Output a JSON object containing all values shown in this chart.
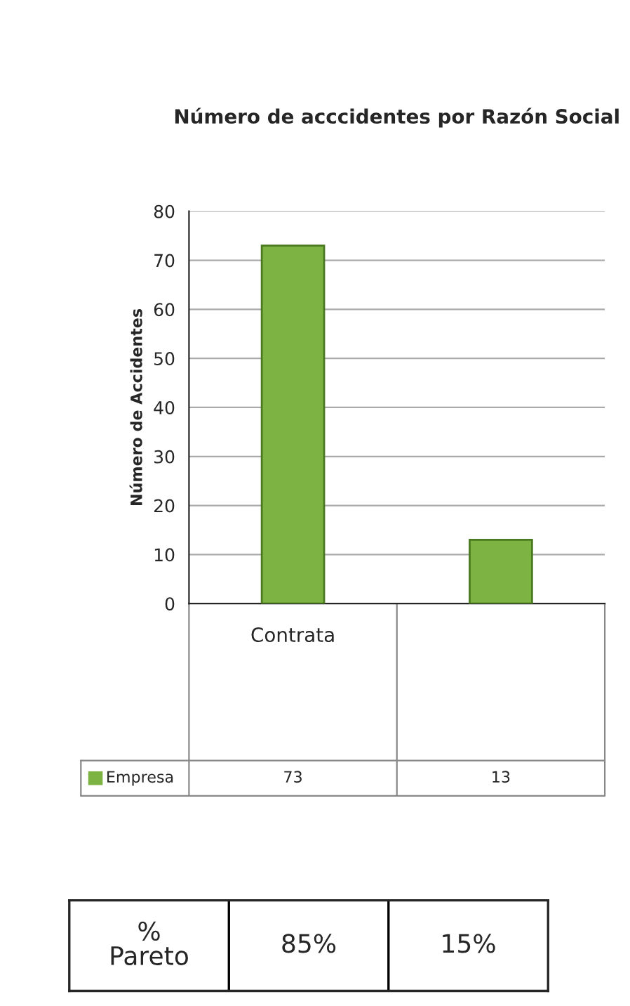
{
  "chart_data": {
    "type": "bar",
    "title": "Número de acccidentes por Razón Social",
    "ylabel": "Número de Accidentes",
    "categories": [
      "Contrata",
      null
    ],
    "series": [
      {
        "name": "Empresa",
        "color": "#7cb342",
        "values": [
          73,
          13
        ]
      }
    ],
    "ylim": [
      0,
      80
    ],
    "yticks": [
      0,
      10,
      20,
      30,
      40,
      50,
      60,
      70,
      80
    ],
    "grid": "y",
    "data_labels": true,
    "annotations": [
      "%\nPareto",
      "85%",
      "15%"
    ]
  }
}
